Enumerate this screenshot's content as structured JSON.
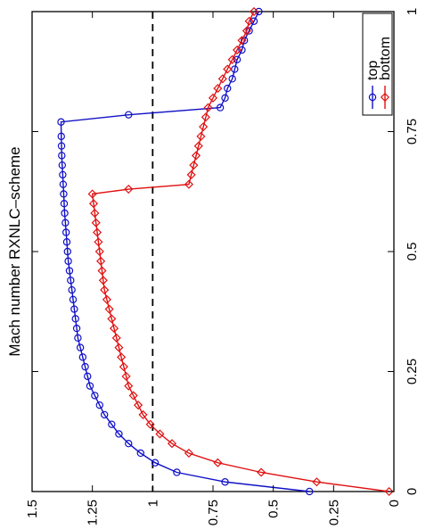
{
  "chart_data": {
    "type": "line",
    "orientation": "rotated-90-clockwise",
    "title": "Mach number RXNLC–scheme",
    "xlabel": "",
    "ylabel": "",
    "xlim": [
      0,
      1
    ],
    "ylim": [
      0,
      1.5
    ],
    "x_ticks": [
      "0",
      "0.25",
      "0.5",
      "0.75",
      "1"
    ],
    "y_ticks": [
      "0",
      "0.25",
      "0.5",
      "0.75",
      "1",
      "1.25",
      "1.5"
    ],
    "reference_line": {
      "y": 1,
      "style": "dashed",
      "color": "#000000"
    },
    "grid": false,
    "legend_position": "top-right",
    "series": [
      {
        "name": "top",
        "color": "#1010c8",
        "marker": "circle",
        "x": [
          0.0,
          0.02,
          0.04,
          0.06,
          0.08,
          0.1,
          0.12,
          0.14,
          0.16,
          0.18,
          0.2,
          0.22,
          0.24,
          0.26,
          0.28,
          0.3,
          0.32,
          0.34,
          0.36,
          0.38,
          0.4,
          0.42,
          0.44,
          0.46,
          0.48,
          0.5,
          0.52,
          0.54,
          0.56,
          0.58,
          0.6,
          0.62,
          0.64,
          0.66,
          0.68,
          0.7,
          0.72,
          0.74,
          0.77,
          0.785,
          0.8,
          0.82,
          0.84,
          0.86,
          0.88,
          0.9,
          0.92,
          0.94,
          0.96,
          0.98,
          1.0
        ],
        "y": [
          0.35,
          0.7,
          0.9,
          0.99,
          1.05,
          1.1,
          1.14,
          1.17,
          1.2,
          1.22,
          1.24,
          1.26,
          1.27,
          1.28,
          1.29,
          1.3,
          1.31,
          1.315,
          1.32,
          1.325,
          1.33,
          1.335,
          1.34,
          1.345,
          1.35,
          1.353,
          1.356,
          1.359,
          1.362,
          1.365,
          1.367,
          1.369,
          1.371,
          1.373,
          1.375,
          1.377,
          1.378,
          1.379,
          1.38,
          1.1,
          0.72,
          0.7,
          0.69,
          0.67,
          0.66,
          0.65,
          0.63,
          0.62,
          0.6,
          0.58,
          0.56
        ]
      },
      {
        "name": "bottom",
        "color": "#e01010",
        "marker": "diamond",
        "x": [
          0.0,
          0.02,
          0.04,
          0.06,
          0.08,
          0.1,
          0.12,
          0.14,
          0.16,
          0.18,
          0.2,
          0.22,
          0.24,
          0.26,
          0.28,
          0.3,
          0.32,
          0.34,
          0.36,
          0.38,
          0.4,
          0.42,
          0.44,
          0.46,
          0.48,
          0.5,
          0.52,
          0.54,
          0.56,
          0.58,
          0.6,
          0.62,
          0.63,
          0.64,
          0.66,
          0.68,
          0.7,
          0.72,
          0.74,
          0.76,
          0.78,
          0.8,
          0.82,
          0.84,
          0.86,
          0.88,
          0.9,
          0.92,
          0.94,
          0.96,
          0.98,
          1.0
        ],
        "y": [
          0.02,
          0.32,
          0.55,
          0.73,
          0.85,
          0.92,
          0.97,
          1.01,
          1.04,
          1.06,
          1.08,
          1.1,
          1.11,
          1.12,
          1.13,
          1.14,
          1.15,
          1.16,
          1.17,
          1.18,
          1.19,
          1.2,
          1.205,
          1.21,
          1.215,
          1.22,
          1.225,
          1.23,
          1.235,
          1.24,
          1.245,
          1.25,
          1.1,
          0.85,
          0.84,
          0.83,
          0.82,
          0.81,
          0.8,
          0.79,
          0.78,
          0.77,
          0.75,
          0.73,
          0.71,
          0.69,
          0.67,
          0.65,
          0.63,
          0.61,
          0.6,
          0.58
        ]
      }
    ]
  }
}
